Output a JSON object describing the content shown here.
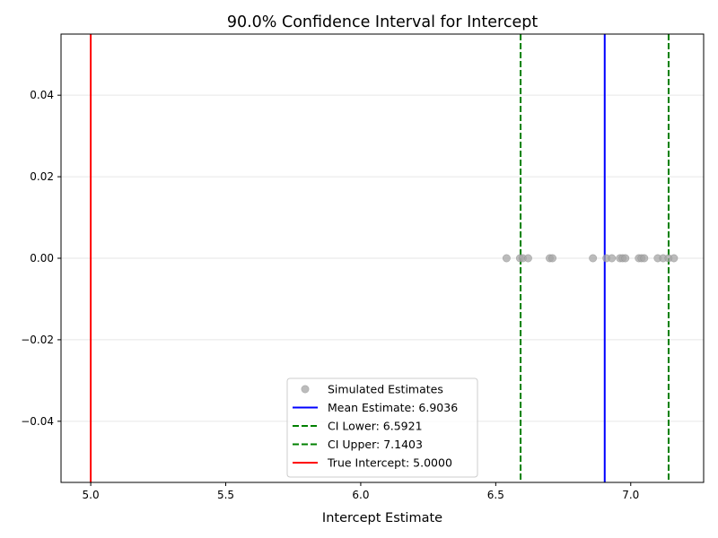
{
  "chart_data": {
    "type": "scatter",
    "title": "90.0% Confidence Interval for Intercept",
    "xlabel": "Intercept Estimate",
    "ylabel": "",
    "xlim": [
      4.89,
      7.27
    ],
    "ylim": [
      -0.055,
      0.055
    ],
    "xticks": [
      "5.0",
      "5.5",
      "6.0",
      "6.5",
      "7.0"
    ],
    "xtick_values": [
      5.0,
      5.5,
      6.0,
      6.5,
      7.0
    ],
    "yticks": [
      "0.04",
      "0.02",
      "0.00",
      "−0.02",
      "−0.04"
    ],
    "ytick_values": [
      0.04,
      0.02,
      0.0,
      -0.02,
      -0.04
    ],
    "grid": "y-major",
    "legend_position": "lower center",
    "points": {
      "name": "Simulated Estimates",
      "color": "#a6a6a6",
      "x": [
        6.54,
        6.59,
        6.6,
        6.62,
        6.7,
        6.71,
        6.86,
        6.91,
        6.93,
        6.96,
        6.97,
        6.98,
        7.03,
        7.04,
        7.05,
        7.1,
        7.12,
        7.14,
        7.16
      ],
      "y": [
        0,
        0,
        0,
        0,
        0,
        0,
        0,
        0,
        0,
        0,
        0,
        0,
        0,
        0,
        0,
        0,
        0,
        0,
        0
      ]
    },
    "lines": [
      {
        "name": "Mean Estimate: 6.9036",
        "x": 6.9036,
        "color": "#0000ff",
        "style": "solid"
      },
      {
        "name": "CI Lower: 6.5921",
        "x": 6.5921,
        "color": "#008000",
        "style": "dashed"
      },
      {
        "name": "CI Upper: 7.1403",
        "x": 7.1403,
        "color": "#008000",
        "style": "dashed"
      },
      {
        "name": "True Intercept: 5.0000",
        "x": 5.0,
        "color": "#ff0000",
        "style": "solid"
      }
    ]
  }
}
